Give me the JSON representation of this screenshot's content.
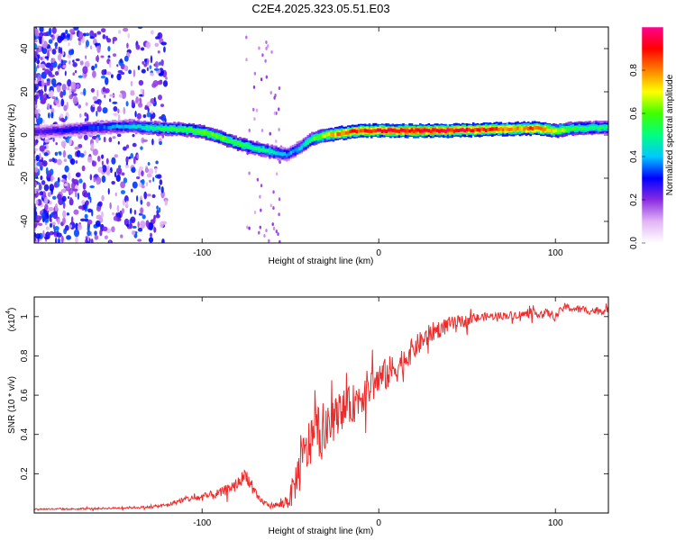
{
  "title": "C2E4.2025.323.05.51.E03",
  "chart_data": [
    {
      "type": "heatmap",
      "name": "spectrogram",
      "xlabel": "Height of straight line (km)",
      "ylabel": "Frequency (Hz)",
      "xlim": [
        -195,
        130
      ],
      "ylim": [
        -50,
        50
      ],
      "xticks": [
        -100,
        0,
        100
      ],
      "yticks": [
        -40,
        -20,
        0,
        20,
        40
      ],
      "colorbar": {
        "label": "Normalized spectral amplitude",
        "range": [
          0,
          1
        ],
        "ticks": [
          "0.0",
          "0.2",
          "0.4",
          "0.6",
          "0.8"
        ],
        "colors": [
          "#ffffff",
          "#e2b4f5",
          "#8a2be2",
          "#0000ff",
          "#00c8ff",
          "#00ff80",
          "#40ff00",
          "#ffff00",
          "#ff8000",
          "#ff0000",
          "#ff0090"
        ]
      },
      "ridge": {
        "x": [
          -195,
          -180,
          -160,
          -140,
          -125,
          -110,
          -100,
          -90,
          -80,
          -70,
          -60,
          -52,
          -45,
          -38,
          -30,
          -20,
          -10,
          0,
          20,
          40,
          60,
          80,
          90,
          100,
          110,
          130
        ],
        "frequency": [
          1.5,
          2,
          3.5,
          4,
          3,
          2.5,
          1.5,
          -1,
          -4,
          -6,
          -8,
          -9,
          -6,
          -2,
          0,
          1,
          2,
          2,
          2,
          2,
          2.5,
          3,
          3,
          2,
          3,
          3.5
        ],
        "amplitude": [
          0.25,
          0.3,
          0.35,
          0.45,
          0.55,
          0.6,
          0.65,
          0.65,
          0.6,
          0.55,
          0.5,
          0.4,
          0.45,
          0.6,
          0.75,
          0.9,
          0.95,
          1.0,
          1.0,
          1.0,
          0.95,
          0.85,
          0.95,
          0.75,
          0.6,
          0.55
        ]
      }
    },
    {
      "type": "line",
      "name": "snr",
      "xlabel": "Height of straight line (km)",
      "ylabel": "SNR (10 * v/v)",
      "scale_label": "(x10",
      "scale_exp": "4",
      "scale_close": ")",
      "xlim": [
        -195,
        130
      ],
      "ylim": [
        0,
        1.1
      ],
      "xticks": [
        -100,
        0,
        100
      ],
      "yticks": [
        0.2,
        0.4,
        0.6,
        0.8,
        1.0
      ],
      "color": "#ee2b2b",
      "series": {
        "x": [
          -195,
          -170,
          -150,
          -130,
          -120,
          -110,
          -100,
          -90,
          -80,
          -75,
          -72,
          -68,
          -62,
          -55,
          -50,
          -45,
          -40,
          -35,
          -32,
          -28,
          -22,
          -15,
          -8,
          0,
          10,
          20,
          30,
          40,
          60,
          80,
          95,
          100,
          105,
          110,
          120,
          130
        ],
        "y": [
          0.02,
          0.02,
          0.025,
          0.03,
          0.04,
          0.07,
          0.08,
          0.1,
          0.15,
          0.2,
          0.13,
          0.07,
          0.04,
          0.04,
          0.08,
          0.22,
          0.33,
          0.45,
          0.38,
          0.44,
          0.52,
          0.55,
          0.62,
          0.68,
          0.74,
          0.84,
          0.92,
          0.96,
          1.0,
          1.01,
          1.02,
          1.0,
          1.05,
          1.04,
          1.03,
          1.03
        ],
        "noise": [
          0.004,
          0.004,
          0.005,
          0.006,
          0.01,
          0.015,
          0.02,
          0.025,
          0.03,
          0.04,
          0.03,
          0.02,
          0.01,
          0.02,
          0.06,
          0.12,
          0.14,
          0.14,
          0.12,
          0.11,
          0.1,
          0.1,
          0.1,
          0.09,
          0.08,
          0.06,
          0.05,
          0.04,
          0.02,
          0.02,
          0.02,
          0.02,
          0.02,
          0.02,
          0.02,
          0.02
        ]
      }
    }
  ]
}
